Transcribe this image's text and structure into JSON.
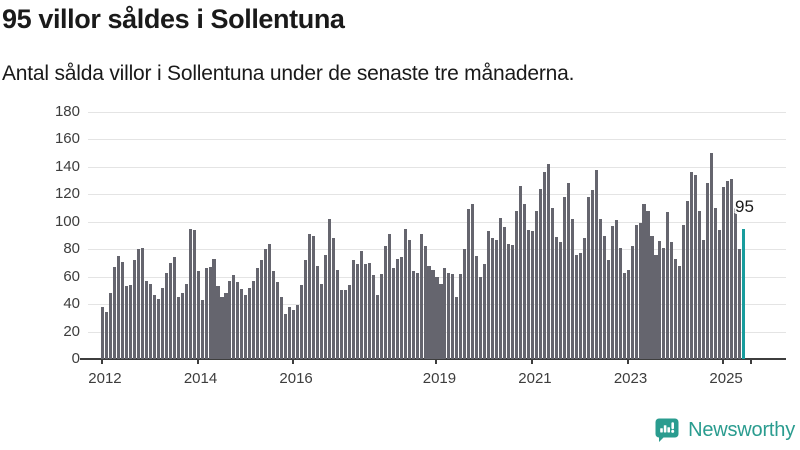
{
  "title": "95 villor såldes i Sollentuna",
  "subtitle": "Antal sålda villor i Sollentuna under de senaste tre månaderna.",
  "annotation": "95",
  "branding": {
    "wordmark": "Newsworthy",
    "icon": "newsworthy-speech-bubble-bar-chart-icon"
  },
  "colors": {
    "bar": "#65656e",
    "highlight": "#189c9d",
    "brand": "#2a9c8f",
    "grid": "#e4e4e4",
    "axis": "#3d3d3d",
    "text": "#1a1a1a"
  },
  "chart_data": {
    "type": "bar",
    "title": "95 villor såldes i Sollentuna",
    "subtitle": "Antal sålda villor i Sollentuna under de senaste tre månaderna.",
    "xlabel": "",
    "ylabel": "",
    "ylim": [
      0,
      180
    ],
    "yticks": [
      0,
      20,
      40,
      60,
      80,
      100,
      120,
      140,
      160,
      180
    ],
    "grid": "horizontal",
    "legend": "none",
    "x_granularity": "month",
    "xticks": [
      {
        "label": "2012",
        "month_index": 0
      },
      {
        "label": "2014",
        "month_index": 24
      },
      {
        "label": "2016",
        "month_index": 48
      },
      {
        "label": "2019",
        "month_index": 84
      },
      {
        "label": "2021",
        "month_index": 108
      },
      {
        "label": "2023",
        "month_index": 132
      },
      {
        "label": "2025",
        "month_index": 156
      },
      {
        "label": "",
        "month_index": 163
      }
    ],
    "values": [
      38,
      34,
      48,
      67,
      75,
      71,
      53,
      54,
      72,
      80,
      81,
      57,
      55,
      47,
      44,
      52,
      63,
      70,
      74,
      45,
      48,
      55,
      95,
      94,
      64,
      43,
      66,
      67,
      73,
      53,
      45,
      48,
      57,
      61,
      56,
      51,
      47,
      52,
      57,
      66,
      72,
      80,
      84,
      64,
      56,
      45,
      33,
      38,
      36,
      39,
      54,
      72,
      91,
      90,
      68,
      55,
      76,
      102,
      88,
      65,
      50,
      50,
      54,
      72,
      69,
      79,
      69,
      70,
      61,
      47,
      62,
      82,
      91,
      66,
      73,
      74,
      95,
      87,
      64,
      63,
      91,
      82,
      68,
      65,
      60,
      55,
      66,
      63,
      62,
      45,
      62,
      80,
      109,
      113,
      75,
      60,
      69,
      93,
      88,
      87,
      103,
      96,
      84,
      83,
      108,
      126,
      113,
      94,
      93,
      108,
      124,
      136,
      142,
      110,
      89,
      85,
      118,
      128,
      102,
      76,
      77,
      88,
      118,
      123,
      138,
      102,
      90,
      72,
      97,
      101,
      81,
      63,
      65,
      82,
      98,
      99,
      113,
      108,
      90,
      76,
      86,
      81,
      107,
      85,
      73,
      68,
      98,
      115,
      136,
      134,
      108,
      87,
      128,
      150,
      110,
      94,
      125,
      130,
      131,
      115,
      80,
      95
    ],
    "highlight_last": true,
    "highlight_value": 95
  }
}
